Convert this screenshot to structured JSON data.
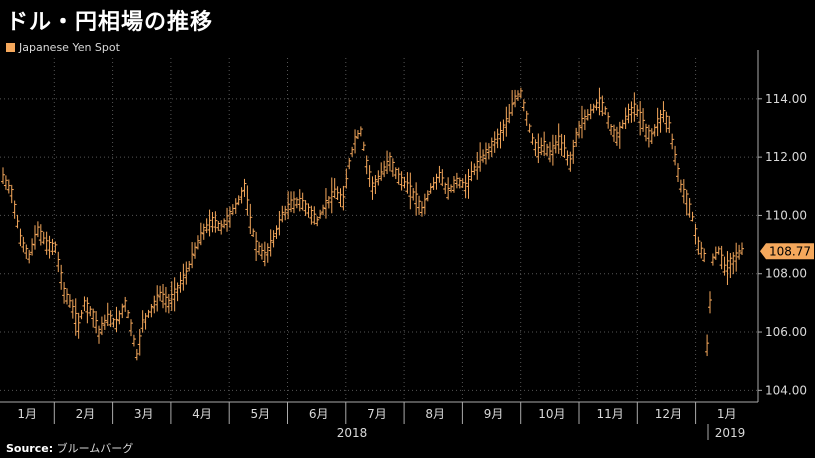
{
  "title": "ドル・円相場の推移",
  "source_label": "Source:",
  "source_value": "ブルームバーグ",
  "chart_data": {
    "type": "candlestick-line",
    "legend": [
      {
        "name": "Japanese Yen Spot",
        "color": "#f5a85c"
      }
    ],
    "y_ticks": [
      "104.00",
      "106.00",
      "108.00",
      "110.00",
      "112.00",
      "114.00"
    ],
    "ylim": [
      103.6,
      115.4
    ],
    "x_months": [
      "1月",
      "2月",
      "3月",
      "4月",
      "5月",
      "6月",
      "7月",
      "8月",
      "9月",
      "10月",
      "11月",
      "12月",
      "1月"
    ],
    "year_labels": [
      "2018",
      "2019"
    ],
    "last_value": "108.77",
    "series": [
      {
        "name": "Japanese Yen Spot",
        "anchors": [
          [
            0,
            111.3
          ],
          [
            3,
            110.8
          ],
          [
            6,
            109.2
          ],
          [
            9,
            108.6
          ],
          [
            12,
            109.5
          ],
          [
            15,
            109.0
          ],
          [
            18,
            108.9
          ],
          [
            21,
            107.4
          ],
          [
            24,
            106.8
          ],
          [
            26,
            106.2
          ],
          [
            28,
            107.0
          ],
          [
            31,
            106.6
          ],
          [
            33,
            106.0
          ],
          [
            36,
            106.5
          ],
          [
            39,
            106.3
          ],
          [
            42,
            107.0
          ],
          [
            44,
            106.2
          ],
          [
            46,
            105.2
          ],
          [
            48,
            106.3
          ],
          [
            51,
            106.8
          ],
          [
            54,
            107.3
          ],
          [
            57,
            107.0
          ],
          [
            60,
            107.5
          ],
          [
            63,
            108.0
          ],
          [
            66,
            108.8
          ],
          [
            69,
            109.5
          ],
          [
            72,
            109.8
          ],
          [
            75,
            109.6
          ],
          [
            78,
            110.0
          ],
          [
            81,
            110.5
          ],
          [
            83,
            111.0
          ],
          [
            85,
            109.8
          ],
          [
            87,
            109.0
          ],
          [
            90,
            108.6
          ],
          [
            93,
            109.2
          ],
          [
            96,
            110.0
          ],
          [
            99,
            110.4
          ],
          [
            102,
            110.5
          ],
          [
            105,
            110.2
          ],
          [
            108,
            109.8
          ],
          [
            111,
            110.4
          ],
          [
            114,
            110.8
          ],
          [
            117,
            110.5
          ],
          [
            119,
            111.8
          ],
          [
            121,
            112.6
          ],
          [
            123,
            112.9
          ],
          [
            125,
            111.8
          ],
          [
            127,
            111.0
          ],
          [
            130,
            111.4
          ],
          [
            133,
            111.9
          ],
          [
            136,
            111.3
          ],
          [
            139,
            111.0
          ],
          [
            142,
            110.6
          ],
          [
            144,
            110.2
          ],
          [
            147,
            110.9
          ],
          [
            150,
            111.4
          ],
          [
            153,
            110.8
          ],
          [
            156,
            111.2
          ],
          [
            159,
            111.0
          ],
          [
            162,
            111.6
          ],
          [
            165,
            112.0
          ],
          [
            168,
            112.4
          ],
          [
            171,
            112.8
          ],
          [
            174,
            113.4
          ],
          [
            176,
            114.0
          ],
          [
            178,
            114.2
          ],
          [
            180,
            113.4
          ],
          [
            182,
            112.6
          ],
          [
            184,
            112.2
          ],
          [
            186,
            112.4
          ],
          [
            188,
            112.1
          ],
          [
            191,
            112.6
          ],
          [
            193,
            112.2
          ],
          [
            195,
            111.8
          ],
          [
            197,
            112.7
          ],
          [
            199,
            113.2
          ],
          [
            201,
            113.4
          ],
          [
            203,
            113.7
          ],
          [
            205,
            113.9
          ],
          [
            207,
            113.6
          ],
          [
            209,
            113.0
          ],
          [
            211,
            112.7
          ],
          [
            213,
            113.1
          ],
          [
            215,
            113.5
          ],
          [
            217,
            113.7
          ],
          [
            219,
            113.4
          ],
          [
            221,
            112.9
          ],
          [
            223,
            112.7
          ],
          [
            225,
            113.2
          ],
          [
            227,
            113.5
          ],
          [
            229,
            113.1
          ],
          [
            231,
            112.0
          ],
          [
            233,
            111.0
          ],
          [
            235,
            110.6
          ],
          [
            237,
            109.9
          ],
          [
            239,
            109.0
          ],
          [
            241,
            108.6
          ],
          [
            242,
            105.5
          ],
          [
            244,
            108.5
          ],
          [
            246,
            108.8
          ],
          [
            248,
            108.2
          ],
          [
            250,
            108.4
          ],
          [
            252,
            108.6
          ],
          [
            254,
            108.8
          ]
        ]
      }
    ]
  }
}
